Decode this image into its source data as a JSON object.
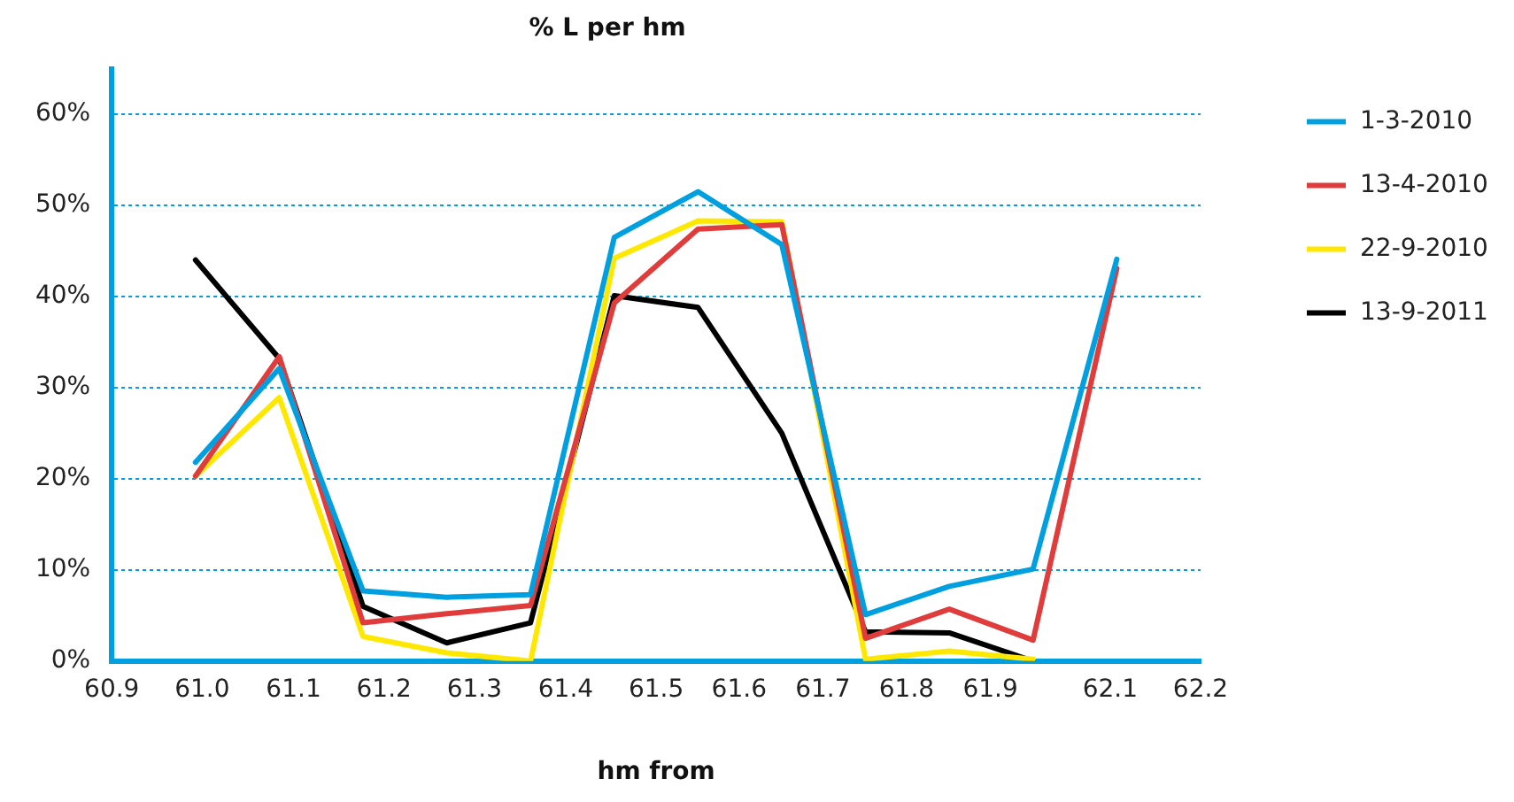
{
  "chart_data": {
    "type": "line",
    "title": "% L per hm",
    "xlabel": "hm from",
    "x": [
      61.0,
      61.1,
      61.2,
      61.3,
      61.4,
      61.5,
      61.6,
      61.7,
      61.8,
      61.9,
      62.0,
      62.1
    ],
    "series": [
      {
        "name": "1-3-2010",
        "color": "#00a0e0",
        "values": [
          21.8,
          32.1,
          7.7,
          7.0,
          7.3,
          46.5,
          51.5,
          45.7,
          5.1,
          8.2,
          10.1,
          44.1
        ]
      },
      {
        "name": "13-4-2010",
        "color": "#e03c3c",
        "values": [
          20.3,
          33.4,
          4.2,
          5.2,
          6.1,
          39.3,
          47.4,
          47.9,
          2.5,
          5.7,
          2.3,
          43.1
        ]
      },
      {
        "name": "22-9-2010",
        "color": "#ffe800",
        "values": [
          20.3,
          28.9,
          2.7,
          0.9,
          0,
          44.2,
          48.3,
          48.2,
          0.2,
          1.1,
          0.2,
          null
        ]
      },
      {
        "name": "13-9-2011",
        "color": "#000000",
        "values": [
          44.0,
          33.2,
          6.0,
          2.0,
          4.2,
          40.1,
          38.8,
          25.0,
          3.2,
          3.1,
          0,
          null
        ]
      }
    ],
    "xlim": [
      60.9,
      62.2
    ],
    "xticks": [
      60.9,
      {
        "value": 61.008,
        "label": "61.0"
      },
      {
        "value": 61.117,
        "label": "61.1"
      },
      {
        "value": 61.225,
        "label": "61.2"
      },
      {
        "value": 61.333,
        "label": "61.3"
      },
      {
        "value": 61.442,
        "label": "61.4"
      },
      {
        "value": 61.55,
        "label": "61.5"
      },
      {
        "value": 61.649,
        "label": "61.6"
      },
      {
        "value": 61.749,
        "label": "61.7"
      },
      {
        "value": 61.849,
        "label": "61.8"
      },
      {
        "value": 61.949,
        "label": "61.9"
      },
      {
        "value": 62.092,
        "label": "62.1"
      },
      62.2
    ],
    "ylim": [
      0,
      65
    ],
    "yticks": [
      {
        "value": 0,
        "label": "0%"
      },
      {
        "value": 10,
        "label": "10%"
      },
      {
        "value": 20,
        "label": "20%"
      },
      {
        "value": 30,
        "label": "30%"
      },
      {
        "value": 40,
        "label": "40%"
      },
      {
        "value": 50,
        "label": "50%"
      },
      {
        "value": 60,
        "label": "60%"
      }
    ],
    "grid": "y",
    "legend": "right",
    "marker": "none",
    "line_style": "solid"
  }
}
